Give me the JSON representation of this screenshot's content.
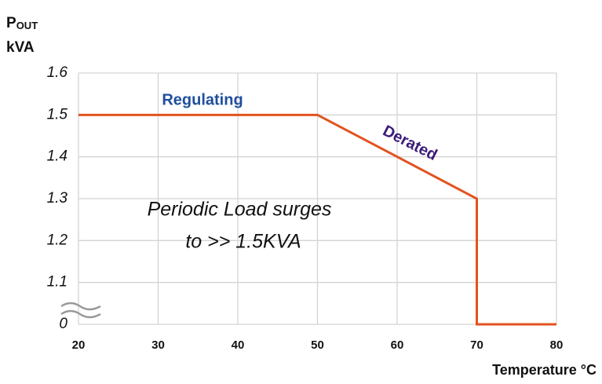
{
  "chart_data": {
    "type": "line",
    "ylabel": {
      "main": "P",
      "sub": "OUT",
      "unit": "kVA"
    },
    "xlabel": "Temperature °C",
    "x": [
      20,
      50,
      70,
      70,
      80
    ],
    "series": [
      {
        "color": "#e2531f",
        "values": [
          1.5,
          1.5,
          1.3,
          0,
          0
        ]
      }
    ],
    "xlim": [
      20,
      80
    ],
    "xticks": [
      20,
      30,
      40,
      50,
      60,
      70,
      80
    ],
    "ylim": [
      0,
      1.6
    ],
    "yticks": [
      0,
      1.1,
      1.2,
      1.3,
      1.4,
      1.5,
      1.6
    ],
    "y_axis_break": true,
    "grid": true,
    "annotations": [
      {
        "text": "Regulating",
        "color": "#1f4e9c"
      },
      {
        "text": "Derated",
        "color": "#3a1a78"
      },
      {
        "text": "Periodic Load surges",
        "color": "#111111"
      },
      {
        "text": "to >> 1.5KVA",
        "color": "#111111"
      }
    ]
  }
}
